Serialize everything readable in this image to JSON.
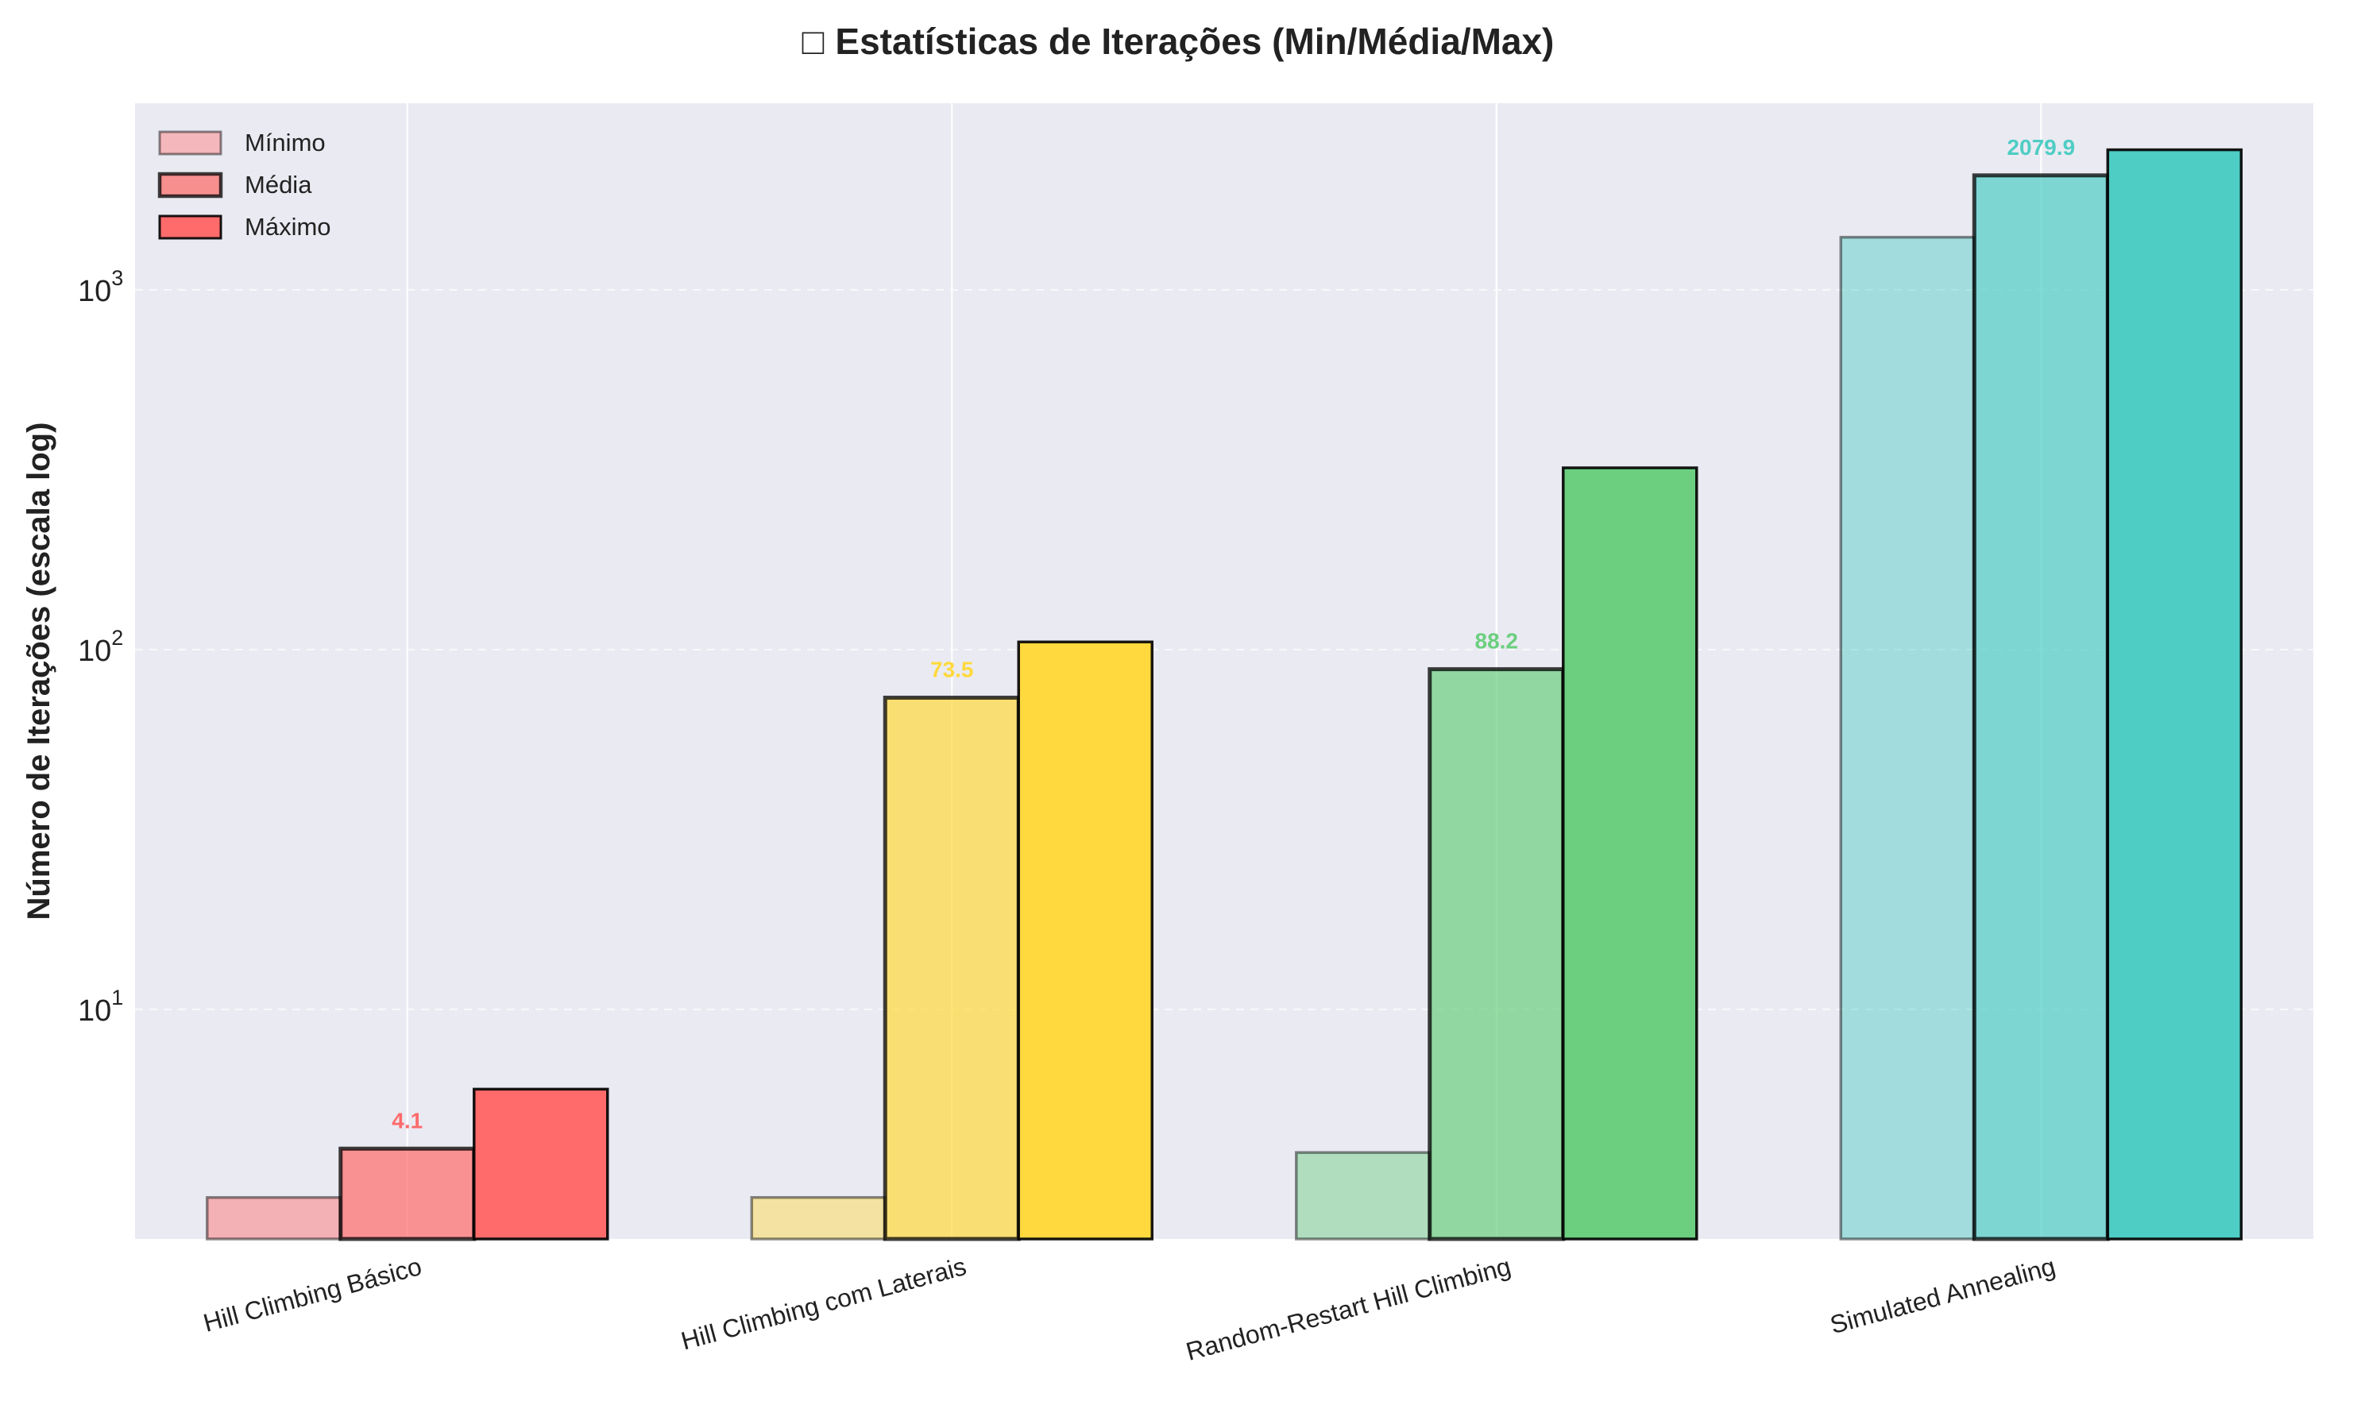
{
  "chart_data": {
    "type": "bar",
    "title_icon": "□",
    "title": "Estatísticas de Iterações (Min/Média/Max)",
    "xlabel": "",
    "ylabel": "Número de Iterações (escala log)",
    "y_scale": "log",
    "ylim": [
      2.3,
      3300
    ],
    "y_ticks": [
      {
        "value": 10,
        "base": "10",
        "exp": "1"
      },
      {
        "value": 100,
        "base": "10",
        "exp": "2"
      },
      {
        "value": 1000,
        "base": "10",
        "exp": "3"
      }
    ],
    "grid": true,
    "legend_position": "top-left",
    "categories": [
      "Hill Climbing Básico",
      "Hill Climbing com Laterais",
      "Random-Restart Hill Climbing",
      "Simulated Annealing"
    ],
    "category_colors": [
      "#FF6B6B",
      "#FFD93D",
      "#6BCF7F",
      "#4ECDC4"
    ],
    "series": [
      {
        "name": "Mínimo",
        "values": [
          3,
          3,
          4,
          1400
        ],
        "opacity": 0.45,
        "edge_opacity": 0.45
      },
      {
        "name": "Média",
        "values": [
          4.1,
          73.5,
          88.2,
          2079.9
        ],
        "opacity": 0.7,
        "edge_opacity": 0.75
      },
      {
        "name": "Máximo",
        "values": [
          6,
          105,
          320,
          2450
        ],
        "opacity": 1.0,
        "edge_opacity": 0.9
      }
    ],
    "value_labels": [
      "4.1",
      "73.5",
      "88.2",
      "2079.9"
    ],
    "colors": {
      "plot_background": "#EAEAF2",
      "grid": "#FFFFFF",
      "legend_min": "#F3B7BC",
      "legend_mean": "#F78F8F",
      "legend_max": "#FF6B6B",
      "bar_edge": "#000000"
    }
  }
}
